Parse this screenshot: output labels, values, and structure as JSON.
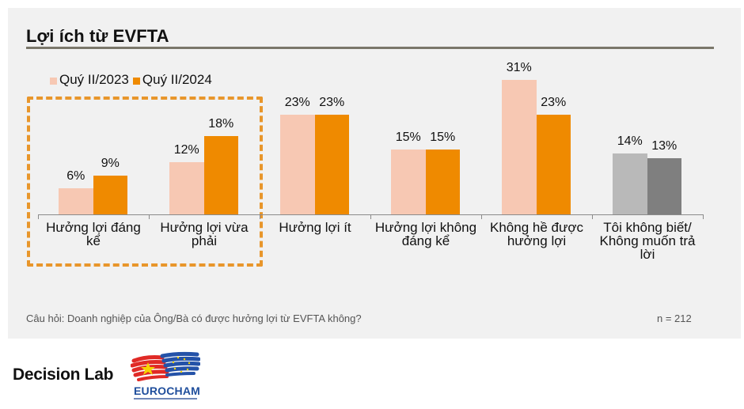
{
  "title": "Lợi ích từ EVFTA",
  "legend": [
    {
      "label": "Quý II/2023",
      "color": "#f7c8b3"
    },
    {
      "label": "Quý II/2024",
      "color": "#ef8a00"
    }
  ],
  "groups": [
    {
      "label_lines": [
        "Hưởng lợi đáng",
        "kể"
      ],
      "v2023": "6%",
      "v2024": "9%"
    },
    {
      "label_lines": [
        "Hưởng lợi vừa",
        "phải"
      ],
      "v2023": "12%",
      "v2024": "18%"
    },
    {
      "label_lines": [
        "Hưởng lợi ít"
      ],
      "v2023": "23%",
      "v2024": "23%"
    },
    {
      "label_lines": [
        "Hưởng lợi không",
        "đáng kể"
      ],
      "v2023": "15%",
      "v2024": "15%"
    },
    {
      "label_lines": [
        "Không hề được",
        "hưởng lợi"
      ],
      "v2023": "31%",
      "v2024": "23%"
    },
    {
      "label_lines": [
        "Tôi không biết/",
        "Không muốn trả",
        "lời"
      ],
      "v2023": "14%",
      "v2024": "13%"
    }
  ],
  "colors": {
    "q2023": "#f7c8b3",
    "q2024": "#ef8a00",
    "unknown_2023": "#b9b9b9",
    "unknown_2024": "#7f7f7f",
    "highlight_border": "#e8962b",
    "title_rule": "#7a776a"
  },
  "footer": {
    "question": "Câu hỏi: Doanh nghiệp của Ông/Bà có được hưởng lợi từ EVFTA không?",
    "sample": "n = 212"
  },
  "logos": {
    "decision_lab": "Decision Lab",
    "eurocham": "EUROCHAM"
  },
  "chart_data": {
    "type": "bar",
    "title": "Lợi ích từ EVFTA",
    "categories": [
      "Hưởng lợi đáng kể",
      "Hưởng lợi vừa phải",
      "Hưởng lợi ít",
      "Hưởng lợi không đáng kể",
      "Không hề được hưởng lợi",
      "Tôi không biết/ Không muốn trả lời"
    ],
    "series": [
      {
        "name": "Quý II/2023",
        "values": [
          6,
          12,
          23,
          15,
          31,
          14
        ]
      },
      {
        "name": "Quý II/2024",
        "values": [
          9,
          18,
          23,
          15,
          23,
          13
        ]
      }
    ],
    "xlabel": "",
    "ylabel": "",
    "unit": "%",
    "ylim": [
      0,
      35
    ],
    "grid": false,
    "legend_position": "top-left",
    "annotations": [
      "Dashed orange box highlights first two categories",
      "Câu hỏi: Doanh nghiệp của Ông/Bà có được hưởng lợi từ EVFTA không?",
      "n = 212"
    ]
  }
}
